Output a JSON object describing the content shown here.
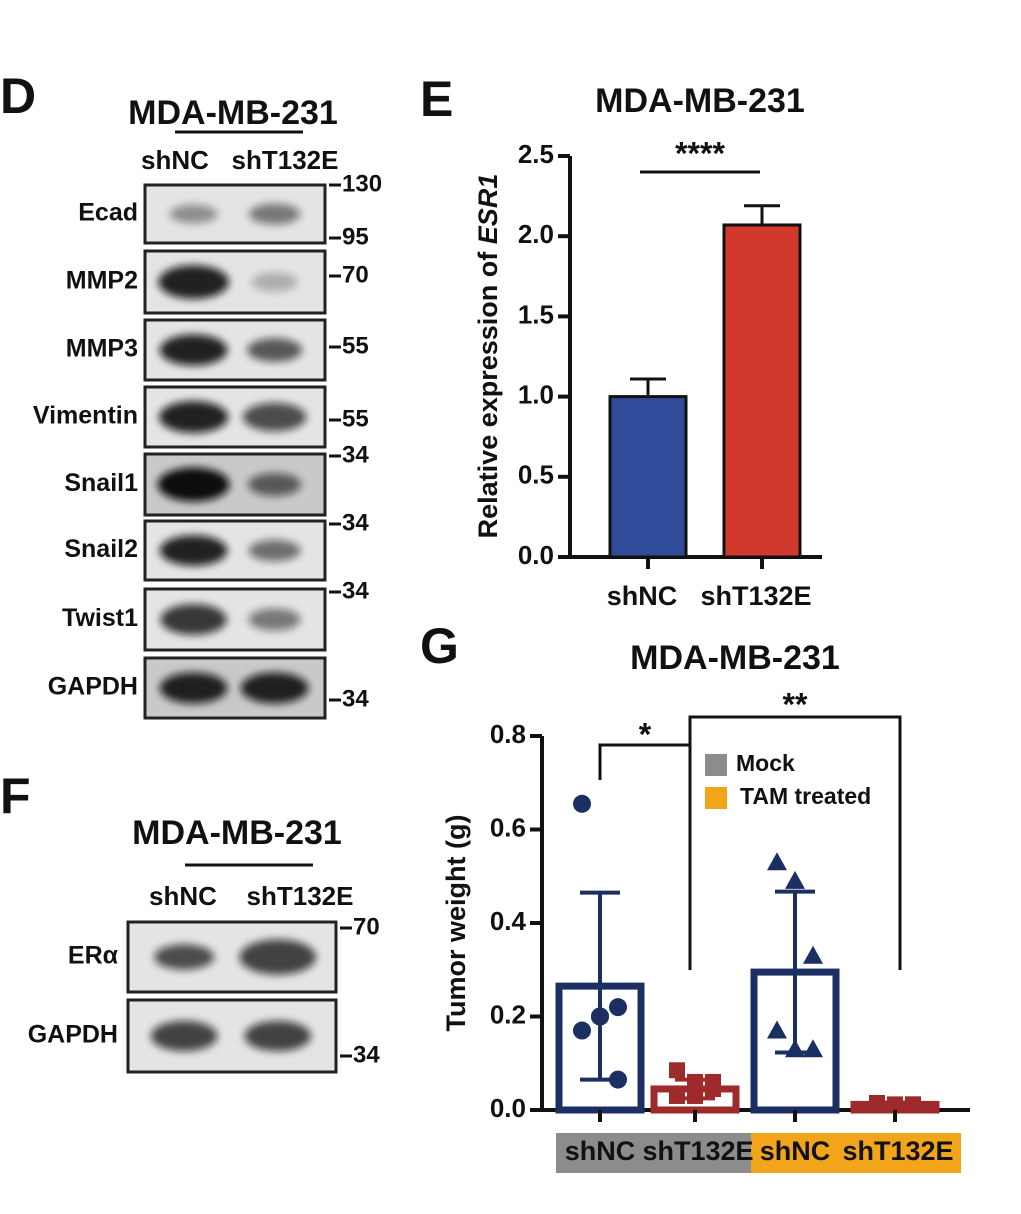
{
  "blots": [
    {
      "letter": "D",
      "title": "MDA-MB-231",
      "lanes": [
        "shNC",
        "shT132E"
      ],
      "rows": [
        {
          "label": "Ecad",
          "markers": [
            "130",
            "95"
          ]
        },
        {
          "label": "MMP2",
          "markers": [
            "70"
          ]
        },
        {
          "label": "MMP3",
          "markers": [
            "55"
          ]
        },
        {
          "label": "Vimentin",
          "markers": [
            "55"
          ]
        },
        {
          "label": "Snail1",
          "markers": [
            "34"
          ]
        },
        {
          "label": "Snail2",
          "markers": [
            "34"
          ]
        },
        {
          "label": "Twist1",
          "markers": [
            "34"
          ]
        },
        {
          "label": "GAPDH",
          "markers": [
            "34"
          ]
        }
      ]
    },
    {
      "letter": "F",
      "title": "MDA-MB-231",
      "lanes": [
        "shNC",
        "shT132E"
      ],
      "rows": [
        {
          "label": "ERα",
          "markers": [
            "70"
          ]
        },
        {
          "label": "GAPDH",
          "markers": [
            "34"
          ]
        }
      ]
    }
  ],
  "chart_data": [
    {
      "letter": "E",
      "type": "bar",
      "title": "MDA-MB-231",
      "y_label": "Relative expression of",
      "y_label_gene": "ESR1",
      "categories": [
        "shNC",
        "shT132E"
      ],
      "values": [
        1.0,
        2.07
      ],
      "errors": [
        0.11,
        0.12
      ],
      "colors": [
        "#2f4b9a",
        "#d0392b"
      ],
      "ylim": [
        0,
        2.5
      ],
      "yticks": [
        {
          "value": 0,
          "label": "0.0"
        },
        {
          "value": 0.5,
          "label": "0.5"
        },
        {
          "value": 1,
          "label": "1.0"
        },
        {
          "value": 1.5,
          "label": "1.5"
        },
        {
          "value": 2,
          "label": "2.0"
        },
        {
          "value": 2.5,
          "label": "2.5"
        }
      ],
      "significance": "****"
    },
    {
      "letter": "G",
      "type": "bar-scatter",
      "title": "MDA-MB-231",
      "y_label": "Tumor weight (g)",
      "categories": [
        "shNC",
        "shT132E",
        "shNC",
        "shT132E"
      ],
      "category_groups": [
        0,
        0,
        1,
        1
      ],
      "groups": [
        {
          "name": "Mock",
          "color": "#8c8c8c"
        },
        {
          "name": "TAM treated",
          "color": "#f2a51a"
        }
      ],
      "values": [
        0.265,
        0.045,
        0.295,
        0.012
      ],
      "errors": [
        0.2,
        0.02,
        0.172,
        0.004
      ],
      "colors": [
        "#1c2f63",
        "#9e2a2b",
        "#1c2f63",
        "#9e2a2b"
      ],
      "point_shapes": [
        "circle",
        "square",
        "triangle",
        "square"
      ],
      "points": [
        [
          0.655,
          0.2,
          0.22,
          0.17,
          0.2,
          0.065
        ],
        [
          0.085,
          0.06,
          0.06,
          0.03,
          0.03,
          0.045
        ],
        [
          0.53,
          0.49,
          0.33,
          0.17,
          0.13,
          0.13
        ],
        [
          0.015,
          0.012,
          0.012,
          0.01,
          0.01,
          0.012
        ]
      ],
      "ylim": [
        0,
        0.8
      ],
      "yticks": [
        {
          "value": 0,
          "label": "0.0"
        },
        {
          "value": 0.2,
          "label": "0.2"
        },
        {
          "value": 0.4,
          "label": "0.4"
        },
        {
          "value": 0.6,
          "label": "0.6"
        },
        {
          "value": 0.8,
          "label": "0.8"
        }
      ],
      "significance": [
        "*",
        "**"
      ]
    }
  ]
}
